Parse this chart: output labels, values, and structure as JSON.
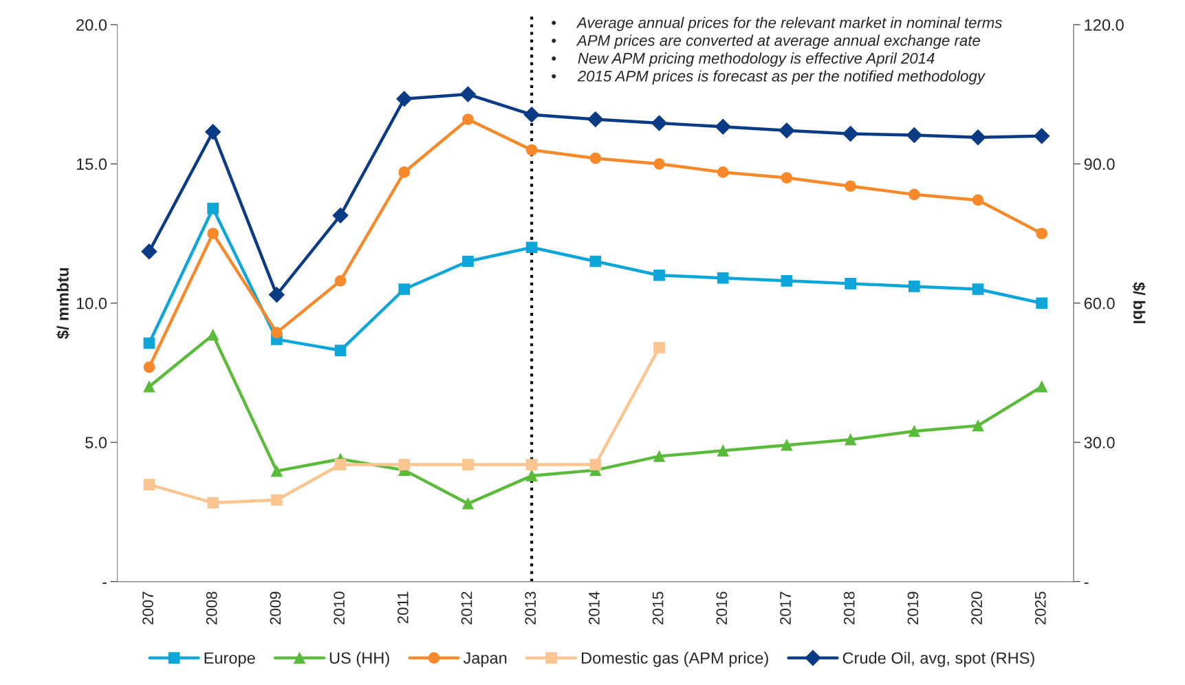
{
  "chart_data": {
    "type": "line",
    "categories": [
      "2007",
      "2008",
      "2009",
      "2010",
      "2011",
      "2012",
      "2013",
      "2014",
      "2015",
      "2016",
      "2017",
      "2018",
      "2019",
      "2020",
      "2025"
    ],
    "ylabel": "$/ mmbtu",
    "y2label": "$/ bbl",
    "ylim": [
      0,
      20
    ],
    "yticks": [
      {
        "value": 0,
        "label": "-"
      },
      {
        "value": 5,
        "label": "5.0"
      },
      {
        "value": 10,
        "label": "10.0"
      },
      {
        "value": 15,
        "label": "15.0"
      },
      {
        "value": 20,
        "label": "20.0"
      }
    ],
    "y2lim": [
      0,
      120
    ],
    "y2ticks": [
      {
        "value": 0,
        "label": "-"
      },
      {
        "value": 30,
        "label": "30.0"
      },
      {
        "value": 60,
        "label": "60.0"
      },
      {
        "value": 90,
        "label": "90.0"
      },
      {
        "value": 120,
        "label": "120.0"
      }
    ],
    "series": [
      {
        "name": "Europe",
        "color": "#0ea5d8",
        "marker": "square",
        "values": [
          8.56,
          13.4,
          8.7,
          8.3,
          10.5,
          11.5,
          12.0,
          11.5,
          11.0,
          10.9,
          10.8,
          10.7,
          10.6,
          10.5,
          10.0
        ]
      },
      {
        "name": "US (HH)",
        "color": "#5abb3a",
        "marker": "triangle",
        "values": [
          7.0,
          8.86,
          3.97,
          4.4,
          4.0,
          2.8,
          3.8,
          4.0,
          4.5,
          4.7,
          4.9,
          5.1,
          5.4,
          5.6,
          7.0
        ]
      },
      {
        "name": "Japan",
        "color": "#f7892b",
        "marker": "circle",
        "values": [
          7.7,
          12.5,
          8.94,
          10.8,
          14.7,
          16.6,
          15.5,
          15.2,
          15.0,
          14.7,
          14.5,
          14.2,
          13.9,
          13.7,
          12.5
        ]
      },
      {
        "name": "Domestic gas (APM price)",
        "color": "#fcc590",
        "marker": "square",
        "values": [
          3.48,
          2.83,
          2.93,
          4.2,
          4.2,
          4.2,
          4.2,
          4.2,
          8.4,
          null,
          null,
          null,
          null,
          null,
          null
        ]
      },
      {
        "name": "Crude Oil, avg, spot (RHS)",
        "color": "#0c3b85",
        "marker": "diamond",
        "axis": "y2",
        "values": [
          71.1,
          96.9,
          61.8,
          78.9,
          104.0,
          105.0,
          100.6,
          99.6,
          98.8,
          98.0,
          97.2,
          96.5,
          96.2,
          95.7,
          96.0
        ]
      }
    ],
    "ref_lines": [
      {
        "axis": "x",
        "value": "2013",
        "color": "#000000",
        "line_style": "dotted"
      }
    ],
    "annotations": [
      "•     Average annual prices for the relevant market in nominal terms",
      "•     APM prices are converted at average annual exchange rate",
      "•     New APM pricing methodology is effective April 2014",
      "•     2015 APM prices is forecast as per the notified methodology"
    ],
    "legend": "bottom",
    "grid": false
  }
}
